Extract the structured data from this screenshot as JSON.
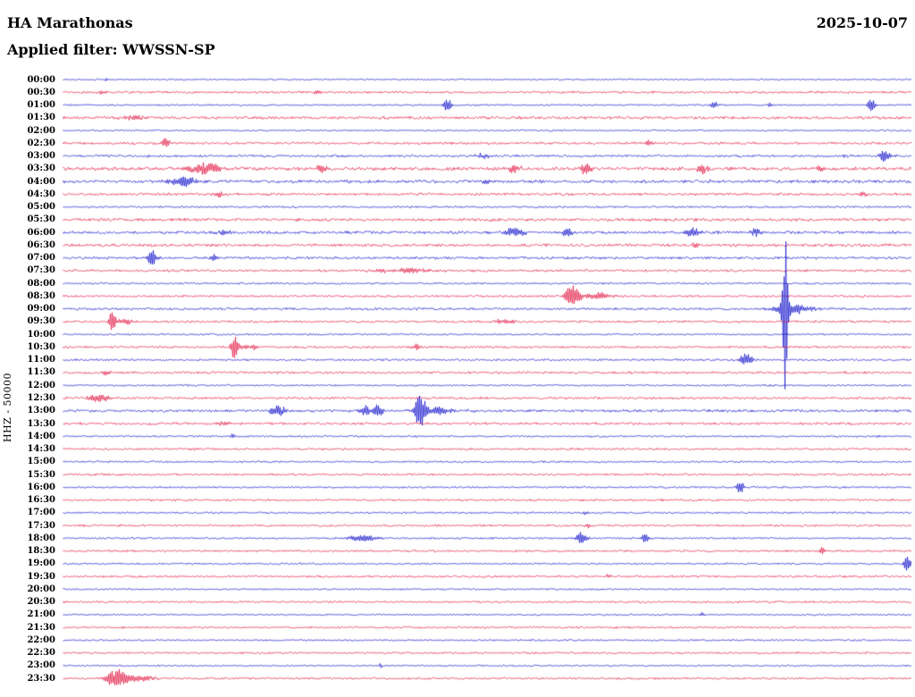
{
  "header": {
    "station": "HA Marathonas",
    "date": "2025-10-07",
    "filter": "Applied filter: WWSSN-SP"
  },
  "left_axis": {
    "label": "HHZ - 50000"
  },
  "chart_data": {
    "type": "line",
    "title": "HA Marathonas helicorder 2025-10-07 (WWSSN-SP)",
    "xlabel": "",
    "ylabel": "HHZ - 50000",
    "layout": {
      "rows": 48,
      "minutes_per_row": 30,
      "grid": false,
      "legend": "none"
    },
    "trace_colors": [
      "#0a0ac8",
      "#e0103c"
    ],
    "rows": [
      {
        "t": "00:00",
        "noise": 0.9,
        "events": [
          {
            "p": 0.05,
            "w": 2,
            "a": 2
          }
        ]
      },
      {
        "t": "00:30",
        "noise": 1.4,
        "events": [
          {
            "p": 0.047,
            "w": 4,
            "a": 2.5
          },
          {
            "p": 0.3,
            "w": 3,
            "a": 2
          }
        ]
      },
      {
        "t": "01:00",
        "noise": 1.0,
        "events": [
          {
            "p": 0.453,
            "w": 3,
            "a": 8
          },
          {
            "p": 0.768,
            "w": 3,
            "a": 4
          },
          {
            "p": 0.833,
            "w": 2,
            "a": 3
          },
          {
            "p": 0.952,
            "w": 3,
            "a": 7
          }
        ]
      },
      {
        "t": "01:30",
        "noise": 1.8,
        "events": [
          {
            "p": 0.085,
            "w": 10,
            "a": 2.5
          }
        ]
      },
      {
        "t": "02:00",
        "noise": 1.0,
        "events": []
      },
      {
        "t": "02:30",
        "noise": 1.5,
        "events": [
          {
            "p": 0.121,
            "w": 3,
            "a": 6
          },
          {
            "p": 0.689,
            "w": 4,
            "a": 3
          }
        ]
      },
      {
        "t": "03:00",
        "noise": 1.5,
        "events": [
          {
            "p": 0.495,
            "w": 6,
            "a": 3
          },
          {
            "p": 0.921,
            "w": 3,
            "a": 3
          },
          {
            "p": 0.968,
            "w": 5,
            "a": 6
          }
        ]
      },
      {
        "t": "03:30",
        "noise": 2.2,
        "events": [
          {
            "p": 0.168,
            "w": 14,
            "a": 6
          },
          {
            "p": 0.305,
            "w": 6,
            "a": 4
          },
          {
            "p": 0.532,
            "w": 5,
            "a": 5
          },
          {
            "p": 0.616,
            "w": 5,
            "a": 6
          },
          {
            "p": 0.753,
            "w": 5,
            "a": 5
          },
          {
            "p": 0.893,
            "w": 4,
            "a": 5
          }
        ]
      },
      {
        "t": "04:00",
        "noise": 2.0,
        "events": [
          {
            "p": 0.142,
            "w": 10,
            "a": 6
          },
          {
            "p": 0.5,
            "w": 4,
            "a": 3
          }
        ]
      },
      {
        "t": "04:30",
        "noise": 1.6,
        "events": [
          {
            "p": 0.184,
            "w": 4,
            "a": 4
          },
          {
            "p": 0.942,
            "w": 3,
            "a": 4
          }
        ]
      },
      {
        "t": "05:00",
        "noise": 1.2,
        "events": []
      },
      {
        "t": "05:30",
        "noise": 1.9,
        "events": []
      },
      {
        "t": "06:00",
        "noise": 1.8,
        "events": [
          {
            "p": 0.19,
            "w": 5,
            "a": 3
          },
          {
            "p": 0.532,
            "w": 8,
            "a": 6
          },
          {
            "p": 0.595,
            "w": 5,
            "a": 5
          },
          {
            "p": 0.742,
            "w": 6,
            "a": 6
          },
          {
            "p": 0.816,
            "w": 4,
            "a": 4
          }
        ]
      },
      {
        "t": "06:30",
        "noise": 1.8,
        "events": [
          {
            "p": 0.747,
            "w": 4,
            "a": 3
          }
        ]
      },
      {
        "t": "07:00",
        "noise": 1.6,
        "events": [
          {
            "p": 0.105,
            "w": 4,
            "a": 9
          },
          {
            "p": 0.179,
            "w": 3,
            "a": 4
          }
        ]
      },
      {
        "t": "07:30",
        "noise": 1.5,
        "events": [
          {
            "p": 0.4,
            "w": 25,
            "a": 2.5
          }
        ]
      },
      {
        "t": "08:00",
        "noise": 1.2,
        "events": []
      },
      {
        "t": "08:30",
        "noise": 1.4,
        "events": [
          {
            "p": 0.6,
            "w": 6,
            "a": 12
          },
          {
            "p": 0.63,
            "w": 12,
            "a": 4
          }
        ]
      },
      {
        "t": "09:00",
        "noise": 1.5,
        "events": [
          {
            "p": 0.8505,
            "w": 2.2,
            "a": 90
          },
          {
            "p": 0.86,
            "w": 15,
            "a": 6
          }
        ]
      },
      {
        "t": "09:30",
        "noise": 1.4,
        "events": [
          {
            "p": 0.058,
            "w": 2.5,
            "a": 14
          },
          {
            "p": 0.075,
            "w": 8,
            "a": 3
          },
          {
            "p": 0.52,
            "w": 10,
            "a": 2.5
          }
        ]
      },
      {
        "t": "10:00",
        "noise": 1.1,
        "events": []
      },
      {
        "t": "10:30",
        "noise": 1.4,
        "events": [
          {
            "p": 0.202,
            "w": 3,
            "a": 13
          },
          {
            "p": 0.22,
            "w": 8,
            "a": 3.5
          },
          {
            "p": 0.416,
            "w": 3,
            "a": 4
          }
        ]
      },
      {
        "t": "11:00",
        "noise": 1.3,
        "events": [
          {
            "p": 0.805,
            "w": 5,
            "a": 8
          }
        ]
      },
      {
        "t": "11:30",
        "noise": 1.5,
        "events": [
          {
            "p": 0.05,
            "w": 4,
            "a": 3
          }
        ]
      },
      {
        "t": "12:00",
        "noise": 1.1,
        "events": []
      },
      {
        "t": "12:30",
        "noise": 1.5,
        "events": [
          {
            "p": 0.042,
            "w": 8,
            "a": 5
          }
        ]
      },
      {
        "t": "13:00",
        "noise": 1.7,
        "events": [
          {
            "p": 0.253,
            "w": 6,
            "a": 7
          },
          {
            "p": 0.356,
            "w": 4,
            "a": 8
          },
          {
            "p": 0.371,
            "w": 4,
            "a": 7
          },
          {
            "p": 0.421,
            "w": 4,
            "a": 20
          },
          {
            "p": 0.44,
            "w": 12,
            "a": 5
          }
        ]
      },
      {
        "t": "13:30",
        "noise": 1.6,
        "events": [
          {
            "p": 0.19,
            "w": 6,
            "a": 2.5
          }
        ]
      },
      {
        "t": "14:00",
        "noise": 1.1,
        "events": [
          {
            "p": 0.2,
            "w": 1.5,
            "a": 4
          }
        ]
      },
      {
        "t": "14:30",
        "noise": 1.4,
        "events": []
      },
      {
        "t": "15:00",
        "noise": 1.1,
        "events": []
      },
      {
        "t": "15:30",
        "noise": 1.3,
        "events": []
      },
      {
        "t": "16:00",
        "noise": 1.1,
        "events": [
          {
            "p": 0.798,
            "w": 3,
            "a": 7
          }
        ]
      },
      {
        "t": "16:30",
        "noise": 1.3,
        "events": []
      },
      {
        "t": "17:00",
        "noise": 1.1,
        "events": [
          {
            "p": 0.615,
            "w": 2,
            "a": 2
          }
        ]
      },
      {
        "t": "17:30",
        "noise": 1.3,
        "events": [
          {
            "p": 0.618,
            "w": 2,
            "a": 3
          }
        ]
      },
      {
        "t": "18:00",
        "noise": 1.1,
        "events": [
          {
            "p": 0.353,
            "w": 12,
            "a": 4
          },
          {
            "p": 0.611,
            "w": 4,
            "a": 9
          },
          {
            "p": 0.686,
            "w": 3,
            "a": 5
          }
        ]
      },
      {
        "t": "18:30",
        "noise": 1.3,
        "events": [
          {
            "p": 0.895,
            "w": 2.5,
            "a": 5
          }
        ]
      },
      {
        "t": "19:00",
        "noise": 1.1,
        "events": [
          {
            "p": 0.995,
            "w": 3,
            "a": 9
          }
        ]
      },
      {
        "t": "19:30",
        "noise": 1.3,
        "events": [
          {
            "p": 0.642,
            "w": 2,
            "a": 2.5
          }
        ]
      },
      {
        "t": "20:00",
        "noise": 1.0,
        "events": []
      },
      {
        "t": "20:30",
        "noise": 1.3,
        "events": []
      },
      {
        "t": "21:00",
        "noise": 1.0,
        "events": [
          {
            "p": 0.753,
            "w": 2,
            "a": 3
          }
        ]
      },
      {
        "t": "21:30",
        "noise": 1.2,
        "events": []
      },
      {
        "t": "22:00",
        "noise": 1.0,
        "events": []
      },
      {
        "t": "22:30",
        "noise": 1.2,
        "events": []
      },
      {
        "t": "23:00",
        "noise": 1.0,
        "events": [
          {
            "p": 0.374,
            "w": 1.5,
            "a": 2.5
          }
        ]
      },
      {
        "t": "23:30",
        "noise": 1.3,
        "events": [
          {
            "p": 0.063,
            "w": 9,
            "a": 10
          },
          {
            "p": 0.09,
            "w": 14,
            "a": 3
          }
        ]
      }
    ]
  }
}
